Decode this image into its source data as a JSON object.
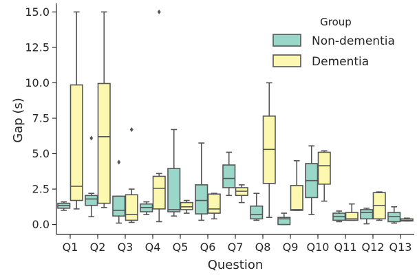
{
  "chart_data": {
    "type": "boxplot",
    "title": "",
    "xlabel": "Question",
    "ylabel": "Gap (s)",
    "ylim": [
      -0.7,
      15.6
    ],
    "yticks": [
      "0.0",
      "2.5",
      "5.0",
      "7.5",
      "10.0",
      "12.5",
      "15.0"
    ],
    "yticks_values": [
      0,
      2.5,
      5,
      7.5,
      10,
      12.5,
      15
    ],
    "categories": [
      "Q1",
      "Q2",
      "Q3",
      "Q4",
      "Q5",
      "Q6",
      "Q7",
      "Q8",
      "Q9",
      "Q10",
      "Q11",
      "Q12",
      "Q13"
    ],
    "legend": {
      "title": "Group",
      "placement": "top-right"
    },
    "series": [
      {
        "name": "Non-dementia",
        "color": "#99d8c9",
        "boxes": [
          {
            "whislo": 1.0,
            "q1": 1.15,
            "med": 1.35,
            "q3": 1.5,
            "whishi": 1.6,
            "fliers": []
          },
          {
            "whislo": 0.55,
            "q1": 1.35,
            "med": 1.8,
            "q3": 2.05,
            "whishi": 2.2,
            "fliers": [
              6.1
            ]
          },
          {
            "whislo": 0.1,
            "q1": 0.6,
            "med": 1.0,
            "q3": 2.0,
            "whishi": 2.0,
            "fliers": [
              4.4
            ]
          },
          {
            "whislo": 0.7,
            "q1": 0.9,
            "med": 1.2,
            "q3": 1.45,
            "whishi": 1.6,
            "fliers": []
          },
          {
            "whislo": 0.6,
            "q1": 0.9,
            "med": 1.05,
            "q3": 3.95,
            "whishi": 6.7,
            "fliers": []
          },
          {
            "whislo": 0.3,
            "q1": 0.75,
            "med": 1.7,
            "q3": 2.8,
            "whishi": 5.75,
            "fliers": []
          },
          {
            "whislo": 2.05,
            "q1": 2.6,
            "med": 3.25,
            "q3": 4.2,
            "whishi": 5.1,
            "fliers": []
          },
          {
            "whislo": 0.3,
            "q1": 0.4,
            "med": 0.7,
            "q3": 1.3,
            "whishi": 2.2,
            "fliers": []
          },
          {
            "whislo": 0.0,
            "q1": 0.0,
            "med": 0.4,
            "q3": 0.5,
            "whishi": 0.8,
            "fliers": []
          },
          {
            "whislo": 0.7,
            "q1": 1.9,
            "med": 3.1,
            "q3": 4.3,
            "whishi": 5.55,
            "fliers": []
          },
          {
            "whislo": 0.2,
            "q1": 0.3,
            "med": 0.55,
            "q3": 0.8,
            "whishi": 0.95,
            "fliers": []
          },
          {
            "whislo": 0.05,
            "q1": 0.4,
            "med": 0.85,
            "q3": 1.05,
            "whishi": 1.15,
            "fliers": []
          },
          {
            "whislo": 0.1,
            "q1": 0.2,
            "med": 0.55,
            "q3": 0.85,
            "whishi": 1.25,
            "fliers": []
          }
        ]
      },
      {
        "name": "Dementia",
        "color": "#fcf8b0",
        "boxes": [
          {
            "whislo": 1.1,
            "q1": 1.7,
            "med": 2.7,
            "q3": 9.85,
            "whishi": 15.0,
            "fliers": []
          },
          {
            "whislo": 1.2,
            "q1": 1.5,
            "med": 6.2,
            "q3": 9.95,
            "whishi": 15.0,
            "fliers": []
          },
          {
            "whislo": 0.15,
            "q1": 0.3,
            "med": 0.7,
            "q3": 2.1,
            "whishi": 2.5,
            "fliers": [
              6.7
            ]
          },
          {
            "whislo": 0.2,
            "q1": 1.1,
            "med": 2.55,
            "q3": 3.4,
            "whishi": 3.6,
            "fliers": [
              15.0
            ]
          },
          {
            "whislo": 0.8,
            "q1": 1.05,
            "med": 1.25,
            "q3": 1.55,
            "whishi": 1.7,
            "fliers": []
          },
          {
            "whislo": 0.4,
            "q1": 0.8,
            "med": 1.1,
            "q3": 2.15,
            "whishi": 2.2,
            "fliers": []
          },
          {
            "whislo": 1.55,
            "q1": 2.05,
            "med": 2.35,
            "q3": 2.6,
            "whishi": 2.8,
            "fliers": []
          },
          {
            "whislo": 0.5,
            "q1": 2.9,
            "med": 5.3,
            "q3": 7.65,
            "whishi": 10.0,
            "fliers": []
          },
          {
            "whislo": 1.0,
            "q1": 1.0,
            "med": 1.05,
            "q3": 2.75,
            "whishi": 4.5,
            "fliers": []
          },
          {
            "whislo": 1.65,
            "q1": 2.85,
            "med": 4.15,
            "q3": 5.1,
            "whishi": 5.2,
            "fliers": []
          },
          {
            "whislo": 0.3,
            "q1": 0.3,
            "med": 0.4,
            "q3": 0.85,
            "whishi": 1.45,
            "fliers": []
          },
          {
            "whislo": 0.3,
            "q1": 0.4,
            "med": 1.35,
            "q3": 2.25,
            "whishi": 2.3,
            "fliers": []
          },
          {
            "whislo": 0.25,
            "q1": 0.25,
            "med": 0.3,
            "q3": 0.4,
            "whishi": 0.45,
            "fliers": []
          }
        ]
      }
    ]
  }
}
